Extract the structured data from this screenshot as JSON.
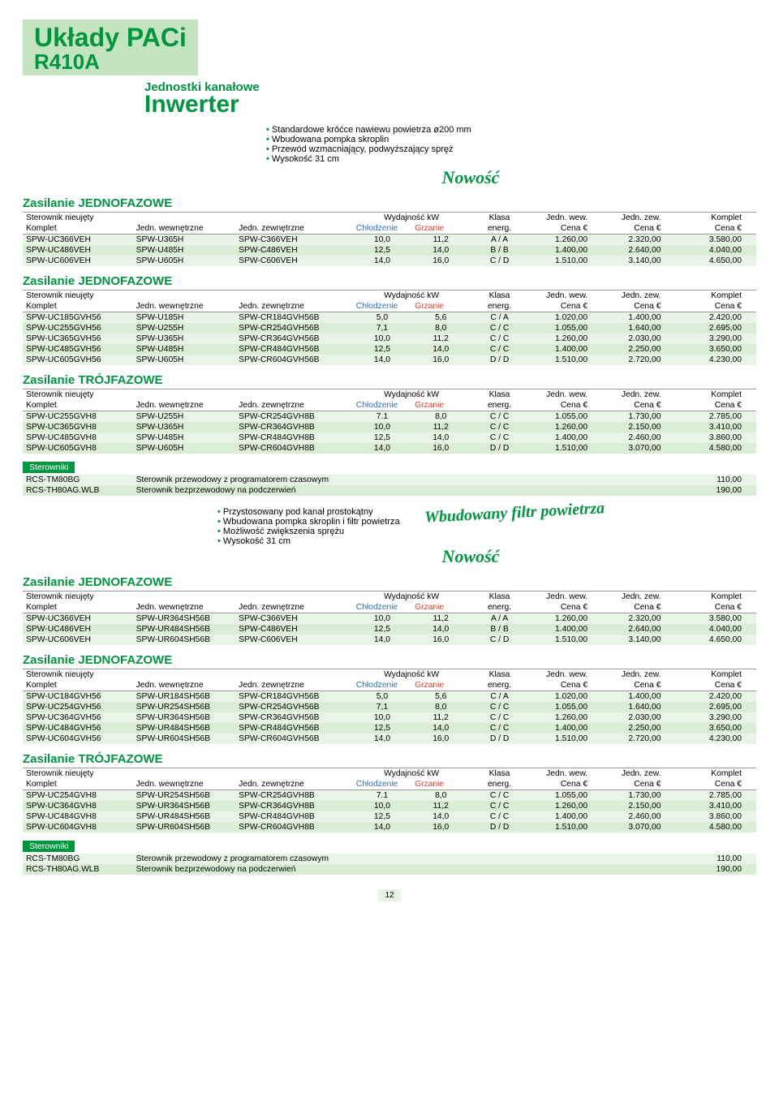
{
  "banner": {
    "title1": "Układy PACi",
    "title2": "R410A"
  },
  "sectionHead": {
    "sub": "Jednostki kanałowe",
    "main": "Inwerter"
  },
  "bulletsTop": [
    "Standardowe króćce nawiewu powietrza ø200 mm",
    "Wbudowana pompka skroplin",
    "Przewód wzmacniający, podwyższający spręż",
    "Wysokość 31 cm"
  ],
  "nowosc": "Nowość",
  "bigFilter": "Wbudowany filtr powietrza",
  "bulletsMid": [
    "Przystosowany pod kanał prostokątny",
    "Wbudowana pompka skroplin i filtr powietrza",
    "Możliwość zwiększenia sprężu",
    "Wysokość 31 cm"
  ],
  "zasJedno": "Zasilanie JEDNOFAZOWE",
  "zasTroj": "Zasilanie TRÓJFAZOWE",
  "headerRow1": {
    "c1": "Sterownik nieujęty",
    "c4": "Wydajność kW",
    "c6": "Klasa",
    "c7": "Jedn. wew.",
    "c8": "Jedn. zew.",
    "c9": "Komplet"
  },
  "headerRow2": {
    "c1": "Komplet",
    "c2": "Jedn. wewnętrzne",
    "c3": "Jedn. zewnętrzne",
    "c4": "Chłodzenie",
    "c5": "Grzanie",
    "c6": "energ.",
    "c7": "Cena €",
    "c8": "Cena €",
    "c9": "Cena €"
  },
  "table1": [
    [
      "SPW-UC366VEH",
      "SPW-U365H",
      "SPW-C366VEH",
      "10,0",
      "11,2",
      "A / A",
      "1.260,00",
      "2.320,00",
      "3.580,00"
    ],
    [
      "SPW-UC486VEH",
      "SPW-U485H",
      "SPW-C486VEH",
      "12,5",
      "14,0",
      "B / B",
      "1.400,00",
      "2.640,00",
      "4.040,00"
    ],
    [
      "SPW-UC606VEH",
      "SPW-U605H",
      "SPW-C606VEH",
      "14,0",
      "16,0",
      "C / D",
      "1.510,00",
      "3.140,00",
      "4.650,00"
    ]
  ],
  "table2": [
    [
      "SPW-UC185GVH56",
      "SPW-U185H",
      "SPW-CR184GVH56B",
      "5,0",
      "5,6",
      "C / A",
      "1.020,00",
      "1.400,00",
      "2.420,00"
    ],
    [
      "SPW-UC255GVH56",
      "SPW-U255H",
      "SPW-CR254GVH56B",
      "7,1",
      "8,0",
      "C / C",
      "1.055,00",
      "1.640,00",
      "2.695,00"
    ],
    [
      "SPW-UC365GVH56",
      "SPW-U365H",
      "SPW-CR364GVH56B",
      "10,0",
      "11,2",
      "C / C",
      "1.260,00",
      "2.030,00",
      "3.290,00"
    ],
    [
      "SPW-UC485GVH56",
      "SPW-U485H",
      "SPW-CR484GVH56B",
      "12,5",
      "14,0",
      "C / C",
      "1.400,00",
      "2.250,00",
      "3.650,00"
    ],
    [
      "SPW-UC605GVH56",
      "SPW-U605H",
      "SPW-CR604GVH56B",
      "14,0",
      "16,0",
      "D / D",
      "1.510,00",
      "2.720,00",
      "4.230,00"
    ]
  ],
  "table3": [
    [
      "SPW-UC255GVH8",
      "SPW-U255H",
      "SPW-CR254GVH8B",
      "7.1",
      "8,0",
      "C / C",
      "1.055,00",
      "1.730,00",
      "2.785,00"
    ],
    [
      "SPW-UC365GVH8",
      "SPW-U365H",
      "SPW-CR364GVH8B",
      "10,0",
      "11,2",
      "C / C",
      "1.260,00",
      "2.150,00",
      "3.410,00"
    ],
    [
      "SPW-UC485GVH8",
      "SPW-U485H",
      "SPW-CR484GVH8B",
      "12,5",
      "14,0",
      "C / C",
      "1.400,00",
      "2.460,00",
      "3.860,00"
    ],
    [
      "SPW-UC605GVH8",
      "SPW-U605H",
      "SPW-CR604GVH8B",
      "14,0",
      "16,0",
      "D / D",
      "1.510,00",
      "3.070,00",
      "4.580,00"
    ]
  ],
  "table4": [
    [
      "SPW-UC366VEH",
      "SPW-UR364SH56B",
      "SPW-C366VEH",
      "10,0",
      "11,2",
      "A / A",
      "1.260,00",
      "2.320,00",
      "3.580,00"
    ],
    [
      "SPW-UC486VEH",
      "SPW-UR484SH56B",
      "SPW-C486VEH",
      "12,5",
      "14,0",
      "B / B",
      "1.400,00",
      "2.640,00",
      "4.040,00"
    ],
    [
      "SPW-UC606VEH",
      "SPW-UR604SH56B",
      "SPW-C606VEH",
      "14,0",
      "16,0",
      "C / D",
      "1.510,00",
      "3.140,00",
      "4.650,00"
    ]
  ],
  "table5": [
    [
      "SPW-UC184GVH56",
      "SPW-UR184SH56B",
      "SPW-CR184GVH56B",
      "5,0",
      "5,6",
      "C / A",
      "1.020,00",
      "1.400,00",
      "2.420,00"
    ],
    [
      "SPW-UC254GVH56",
      "SPW-UR254SH56B",
      "SPW-CR254GVH56B",
      "7,1",
      "8,0",
      "C / C",
      "1.055,00",
      "1.640,00",
      "2.695,00"
    ],
    [
      "SPW-UC364GVH56",
      "SPW-UR364SH56B",
      "SPW-CR364GVH56B",
      "10,0",
      "11,2",
      "C / C",
      "1.260,00",
      "2.030,00",
      "3.290,00"
    ],
    [
      "SPW-UC484GVH56",
      "SPW-UR484SH56B",
      "SPW-CR484GVH56B",
      "12,5",
      "14,0",
      "C / C",
      "1.400,00",
      "2.250,00",
      "3.650,00"
    ],
    [
      "SPW-UC604GVH56",
      "SPW-UR604SH56B",
      "SPW-CR604GVH56B",
      "14,0",
      "16,0",
      "D / D",
      "1.510,00",
      "2.720,00",
      "4.230,00"
    ]
  ],
  "table6": [
    [
      "SPW-UC254GVH8",
      "SPW-UR254SH56B",
      "SPW-CR254GVH8B",
      "7.1",
      "8,0",
      "C / C",
      "1.055,00",
      "1.730,00",
      "2.785,00"
    ],
    [
      "SPW-UC364GVH8",
      "SPW-UR364SH56B",
      "SPW-CR364GVH8B",
      "10,0",
      "11,2",
      "C / C",
      "1.260,00",
      "2.150,00",
      "3.410,00"
    ],
    [
      "SPW-UC484GVH8",
      "SPW-UR484SH56B",
      "SPW-CR484GVH8B",
      "12,5",
      "14,0",
      "C / C",
      "1.400,00",
      "2.460,00",
      "3.860,00"
    ],
    [
      "SPW-UC604GVH8",
      "SPW-UR604SH56B",
      "SPW-CR604GVH8B",
      "14,0",
      "16,0",
      "D / D",
      "1.510,00",
      "3.070,00",
      "4.580,00"
    ]
  ],
  "sterLabel": "Sterowniki",
  "sterRows": [
    [
      "RCS-TM80BG",
      "Sterownik przewodowy z programatorem czasowym",
      "110,00"
    ],
    [
      "RCS-TH80AG.WLB",
      "Sterownik bezprzewodowy na podczerwień",
      "190,00"
    ]
  ],
  "pageNum": "12"
}
